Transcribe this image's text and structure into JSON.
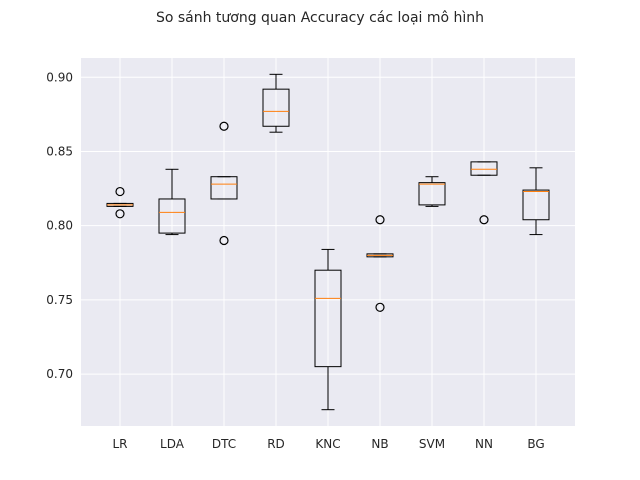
{
  "chart_data": {
    "type": "box",
    "title": "So sánh tương quan Accuracy các loại mô hình",
    "xlabel": "",
    "ylabel": "",
    "ylim": [
      0.665,
      0.913
    ],
    "yticks": [
      0.7,
      0.75,
      0.8,
      0.85,
      0.9
    ],
    "ytick_labels": [
      "0.70",
      "0.75",
      "0.80",
      "0.85",
      "0.90"
    ],
    "grid": true,
    "categories": [
      "LR",
      "LDA",
      "DTC",
      "RD",
      "KNC",
      "NB",
      "SVM",
      "NN",
      "BG"
    ],
    "boxes": [
      {
        "label": "LR",
        "whisker_low": 0.813,
        "q1": 0.813,
        "median": 0.814,
        "q3": 0.815,
        "whisker_high": 0.815,
        "outliers": [
          0.823,
          0.808
        ]
      },
      {
        "label": "LDA",
        "whisker_low": 0.794,
        "q1": 0.795,
        "median": 0.809,
        "q3": 0.818,
        "whisker_high": 0.838,
        "outliers": []
      },
      {
        "label": "DTC",
        "whisker_low": 0.818,
        "q1": 0.818,
        "median": 0.828,
        "q3": 0.833,
        "whisker_high": 0.833,
        "outliers": [
          0.867,
          0.79
        ]
      },
      {
        "label": "RD",
        "whisker_low": 0.863,
        "q1": 0.867,
        "median": 0.877,
        "q3": 0.892,
        "whisker_high": 0.902,
        "outliers": []
      },
      {
        "label": "KNC",
        "whisker_low": 0.676,
        "q1": 0.705,
        "median": 0.751,
        "q3": 0.77,
        "whisker_high": 0.784,
        "outliers": []
      },
      {
        "label": "NB",
        "whisker_low": 0.779,
        "q1": 0.779,
        "median": 0.78,
        "q3": 0.781,
        "whisker_high": 0.781,
        "outliers": [
          0.804,
          0.745
        ]
      },
      {
        "label": "SVM",
        "whisker_low": 0.813,
        "q1": 0.814,
        "median": 0.828,
        "q3": 0.829,
        "whisker_high": 0.833,
        "outliers": []
      },
      {
        "label": "NN",
        "whisker_low": 0.834,
        "q1": 0.834,
        "median": 0.838,
        "q3": 0.843,
        "whisker_high": 0.843,
        "outliers": [
          0.804
        ]
      },
      {
        "label": "BG",
        "whisker_low": 0.794,
        "q1": 0.804,
        "median": 0.823,
        "q3": 0.824,
        "whisker_high": 0.839,
        "outliers": []
      }
    ],
    "colors": {
      "plot_background": "#eaeaf2",
      "grid": "#ffffff",
      "box": "#000000",
      "median": "#ff7f0e",
      "text": "#262626"
    }
  }
}
